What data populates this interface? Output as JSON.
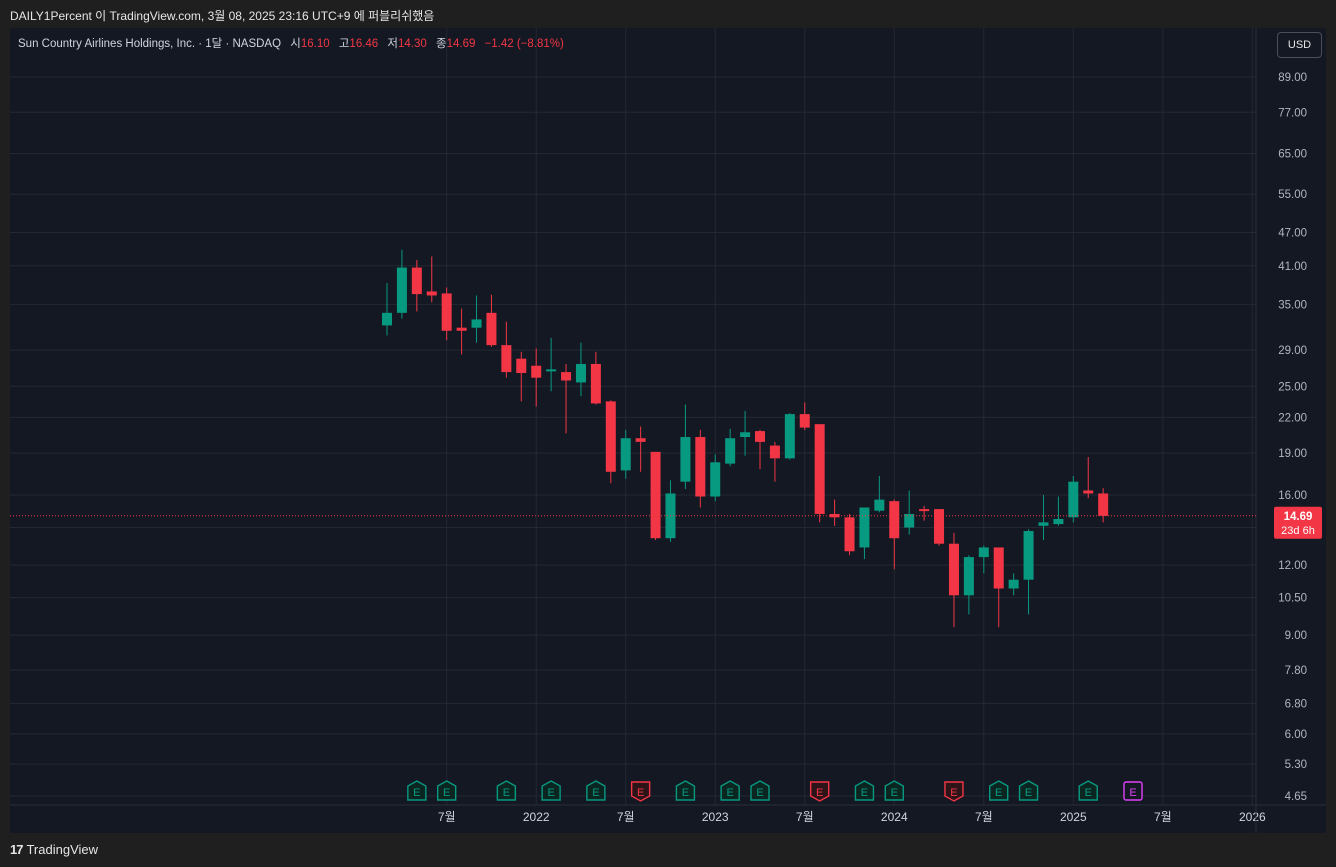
{
  "header": {
    "attribution": "DAILY1Percent 이 TradingView.com, 3월 08, 2025 23:16 UTC+9 에 퍼블리쉬했음"
  },
  "legend": {
    "symbol": "Sun Country Airlines Holdings, Inc. · 1달 · NASDAQ",
    "open_label": "시",
    "open": "16.10",
    "high_label": "고",
    "high": "16.46",
    "low_label": "저",
    "low": "14.30",
    "close_label": "종",
    "close": "14.69",
    "change": "−1.42 (−8.81%)"
  },
  "currency_button": "USD",
  "footer": {
    "brand_logo": "17",
    "brand": "TradingView"
  },
  "colors": {
    "up": "#089981",
    "down": "#f23645",
    "background": "#141823",
    "grid": "#242833",
    "dividend": "#e040fb"
  },
  "chart_data": {
    "type": "candlestick",
    "scale": "log",
    "interval": "1M",
    "ylim": [
      4.4,
      100
    ],
    "yticks": [
      "89.00",
      "77.00",
      "65.00",
      "55.00",
      "47.00",
      "41.00",
      "35.00",
      "29.00",
      "25.00",
      "22.00",
      "19.00",
      "16.00",
      "14.00",
      "12.00",
      "10.50",
      "9.00",
      "7.80",
      "6.80",
      "6.00",
      "5.30",
      "4.65"
    ],
    "xticks": [
      {
        "label": "7월",
        "date": "2021-07"
      },
      {
        "label": "2022",
        "date": "2022-01"
      },
      {
        "label": "7월",
        "date": "2022-07"
      },
      {
        "label": "2023",
        "date": "2023-01"
      },
      {
        "label": "7월",
        "date": "2023-07"
      },
      {
        "label": "2024",
        "date": "2024-01"
      },
      {
        "label": "7월",
        "date": "2024-07"
      },
      {
        "label": "2025",
        "date": "2025-01"
      },
      {
        "label": "7월",
        "date": "2025-07"
      },
      {
        "label": "2026",
        "date": "2026-01"
      }
    ],
    "last_price": {
      "value": "14.69",
      "countdown": "23d 6h"
    },
    "candles": [
      {
        "date": "2021-03",
        "o": 32.1,
        "h": 38.2,
        "l": 30.8,
        "c": 33.8
      },
      {
        "date": "2021-04",
        "o": 33.8,
        "h": 43.8,
        "l": 33.0,
        "c": 40.7
      },
      {
        "date": "2021-05",
        "o": 40.7,
        "h": 42.0,
        "l": 34.0,
        "c": 36.5
      },
      {
        "date": "2021-06",
        "o": 36.9,
        "h": 42.6,
        "l": 35.3,
        "c": 36.3
      },
      {
        "date": "2021-07",
        "o": 36.6,
        "h": 37.5,
        "l": 30.2,
        "c": 31.4
      },
      {
        "date": "2021-08",
        "o": 31.8,
        "h": 34.4,
        "l": 28.5,
        "c": 31.4
      },
      {
        "date": "2021-09",
        "o": 31.8,
        "h": 36.3,
        "l": 29.9,
        "c": 32.9
      },
      {
        "date": "2021-10",
        "o": 33.8,
        "h": 36.4,
        "l": 29.4,
        "c": 29.6
      },
      {
        "date": "2021-11",
        "o": 29.6,
        "h": 32.6,
        "l": 25.9,
        "c": 26.5
      },
      {
        "date": "2021-12",
        "o": 28.0,
        "h": 28.8,
        "l": 23.5,
        "c": 26.4
      },
      {
        "date": "2022-01",
        "o": 27.2,
        "h": 29.2,
        "l": 23.0,
        "c": 25.9
      },
      {
        "date": "2022-02",
        "o": 26.6,
        "h": 30.5,
        "l": 24.5,
        "c": 26.8
      },
      {
        "date": "2022-03",
        "o": 26.5,
        "h": 27.4,
        "l": 20.6,
        "c": 25.6
      },
      {
        "date": "2022-04",
        "o": 25.4,
        "h": 29.9,
        "l": 24.0,
        "c": 27.4
      },
      {
        "date": "2022-05",
        "o": 27.4,
        "h": 28.8,
        "l": 23.2,
        "c": 23.3
      },
      {
        "date": "2022-06",
        "o": 23.5,
        "h": 23.6,
        "l": 16.8,
        "c": 17.6
      },
      {
        "date": "2022-07",
        "o": 17.7,
        "h": 20.9,
        "l": 17.1,
        "c": 20.2
      },
      {
        "date": "2022-08",
        "o": 20.2,
        "h": 21.2,
        "l": 17.6,
        "c": 19.9
      },
      {
        "date": "2022-09",
        "o": 19.1,
        "h": 19.1,
        "l": 13.3,
        "c": 13.4
      },
      {
        "date": "2022-10",
        "o": 13.4,
        "h": 17.0,
        "l": 13.2,
        "c": 16.1
      },
      {
        "date": "2022-11",
        "o": 16.9,
        "h": 23.2,
        "l": 16.4,
        "c": 20.3
      },
      {
        "date": "2022-12",
        "o": 20.3,
        "h": 20.9,
        "l": 15.2,
        "c": 15.9
      },
      {
        "date": "2023-01",
        "o": 15.9,
        "h": 18.9,
        "l": 15.6,
        "c": 18.3
      },
      {
        "date": "2023-02",
        "o": 18.2,
        "h": 21.0,
        "l": 18.0,
        "c": 20.2
      },
      {
        "date": "2023-03",
        "o": 20.3,
        "h": 22.6,
        "l": 18.8,
        "c": 20.7
      },
      {
        "date": "2023-04",
        "o": 20.8,
        "h": 20.9,
        "l": 17.8,
        "c": 19.9
      },
      {
        "date": "2023-05",
        "o": 19.6,
        "h": 19.9,
        "l": 16.9,
        "c": 18.6
      },
      {
        "date": "2023-06",
        "o": 18.6,
        "h": 22.4,
        "l": 18.5,
        "c": 22.3
      },
      {
        "date": "2023-07",
        "o": 22.3,
        "h": 23.4,
        "l": 20.9,
        "c": 21.1
      },
      {
        "date": "2023-08",
        "o": 21.4,
        "h": 21.4,
        "l": 14.3,
        "c": 14.8
      },
      {
        "date": "2023-09",
        "o": 14.8,
        "h": 15.7,
        "l": 14.1,
        "c": 14.6
      },
      {
        "date": "2023-10",
        "o": 14.6,
        "h": 14.8,
        "l": 12.5,
        "c": 12.7
      },
      {
        "date": "2023-11",
        "o": 12.9,
        "h": 15.1,
        "l": 12.3,
        "c": 15.2
      },
      {
        "date": "2023-12",
        "o": 15.0,
        "h": 17.3,
        "l": 14.9,
        "c": 15.7
      },
      {
        "date": "2024-01",
        "o": 15.6,
        "h": 15.7,
        "l": 11.8,
        "c": 13.4
      },
      {
        "date": "2024-02",
        "o": 14.0,
        "h": 16.3,
        "l": 13.6,
        "c": 14.8
      },
      {
        "date": "2024-03",
        "o": 15.1,
        "h": 15.3,
        "l": 14.4,
        "c": 15.0
      },
      {
        "date": "2024-04",
        "o": 15.1,
        "h": 15.1,
        "l": 13.0,
        "c": 13.1
      },
      {
        "date": "2024-05",
        "o": 13.1,
        "h": 13.7,
        "l": 9.3,
        "c": 10.6
      },
      {
        "date": "2024-06",
        "o": 10.6,
        "h": 12.5,
        "l": 9.8,
        "c": 12.4
      },
      {
        "date": "2024-07",
        "o": 12.4,
        "h": 13.0,
        "l": 11.6,
        "c": 12.9
      },
      {
        "date": "2024-08",
        "o": 12.9,
        "h": 12.9,
        "l": 9.3,
        "c": 10.9
      },
      {
        "date": "2024-09",
        "o": 10.9,
        "h": 11.6,
        "l": 10.6,
        "c": 11.3
      },
      {
        "date": "2024-10",
        "o": 11.3,
        "h": 13.9,
        "l": 9.8,
        "c": 13.8
      },
      {
        "date": "2024-11",
        "o": 14.1,
        "h": 16.0,
        "l": 13.3,
        "c": 14.3
      },
      {
        "date": "2024-12",
        "o": 14.2,
        "h": 15.9,
        "l": 14.1,
        "c": 14.5
      },
      {
        "date": "2025-01",
        "o": 14.6,
        "h": 17.3,
        "l": 14.3,
        "c": 16.9
      },
      {
        "date": "2025-02",
        "o": 16.3,
        "h": 18.7,
        "l": 15.8,
        "c": 16.1
      },
      {
        "date": "2025-03",
        "o": 16.1,
        "h": 16.46,
        "l": 14.3,
        "c": 14.69
      }
    ],
    "earnings_markers": [
      {
        "label": "E",
        "date": "2021-05",
        "type": "positive"
      },
      {
        "label": "E",
        "date": "2021-07",
        "type": "positive"
      },
      {
        "label": "E",
        "date": "2021-11",
        "type": "positive"
      },
      {
        "label": "E",
        "date": "2022-02",
        "type": "positive"
      },
      {
        "label": "E",
        "date": "2022-05",
        "type": "positive"
      },
      {
        "label": "E",
        "date": "2022-08",
        "type": "negative"
      },
      {
        "label": "E",
        "date": "2022-11",
        "type": "positive"
      },
      {
        "label": "E",
        "date": "2023-02",
        "type": "positive"
      },
      {
        "label": "E",
        "date": "2023-04",
        "type": "positive"
      },
      {
        "label": "E",
        "date": "2023-08",
        "type": "negative"
      },
      {
        "label": "E",
        "date": "2023-11",
        "type": "positive"
      },
      {
        "label": "E",
        "date": "2024-01",
        "type": "positive"
      },
      {
        "label": "E",
        "date": "2024-05",
        "type": "negative"
      },
      {
        "label": "E",
        "date": "2024-08",
        "type": "positive"
      },
      {
        "label": "E",
        "date": "2024-10",
        "type": "positive"
      },
      {
        "label": "E",
        "date": "2025-02",
        "type": "positive"
      },
      {
        "label": "E",
        "date": "2025-05",
        "type": "upcoming"
      }
    ]
  }
}
